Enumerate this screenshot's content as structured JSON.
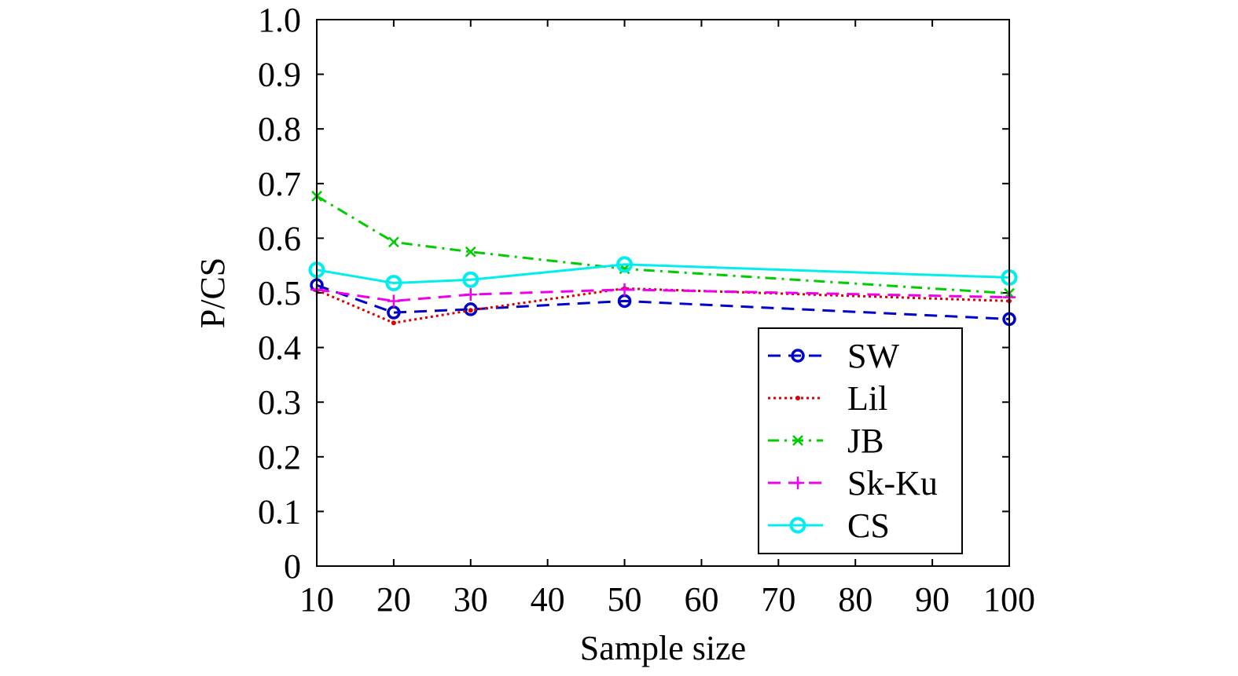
{
  "chart_data": {
    "type": "line",
    "title": "",
    "xlabel": "Sample size",
    "ylabel": "P/CS",
    "xlim": [
      10,
      100
    ],
    "ylim": [
      0,
      1.0
    ],
    "x_ticks": [
      10,
      20,
      30,
      40,
      50,
      60,
      70,
      80,
      90,
      100
    ],
    "x_tick_labels": [
      "10",
      "20",
      "30",
      "40",
      "50",
      "60",
      "70",
      "80",
      "90",
      "100"
    ],
    "y_ticks": [
      0,
      0.1,
      0.2,
      0.3,
      0.4,
      0.5,
      0.6,
      0.7,
      0.8,
      0.9,
      1.0
    ],
    "y_tick_labels": [
      "0",
      "0.1",
      "0.2",
      "0.3",
      "0.4",
      "0.5",
      "0.6",
      "0.7",
      "0.8",
      "0.9",
      "1.0"
    ],
    "grid": false,
    "legend_position": "bottom-right",
    "x": [
      10,
      20,
      30,
      50,
      100
    ],
    "series": [
      {
        "name": "SW",
        "values": [
          0.514,
          0.464,
          0.47,
          0.485,
          0.452
        ],
        "color": "#0000cc",
        "dash": "dashed",
        "marker": "circle-small"
      },
      {
        "name": "Lil",
        "values": [
          0.505,
          0.445,
          0.468,
          0.508,
          0.485
        ],
        "color": "#dd0000",
        "dash": "dotted",
        "marker": "dot"
      },
      {
        "name": "JB",
        "values": [
          0.677,
          0.593,
          0.575,
          0.544,
          0.499
        ],
        "color": "#00cc00",
        "dash": "dash-dot",
        "marker": "x"
      },
      {
        "name": "Sk-Ku",
        "values": [
          0.506,
          0.485,
          0.497,
          0.506,
          0.492
        ],
        "color": "#ee00ee",
        "dash": "dashed",
        "marker": "plus"
      },
      {
        "name": "CS",
        "values": [
          0.542,
          0.518,
          0.524,
          0.552,
          0.528
        ],
        "color": "#00eeee",
        "dash": "solid",
        "marker": "circle-large"
      }
    ]
  }
}
